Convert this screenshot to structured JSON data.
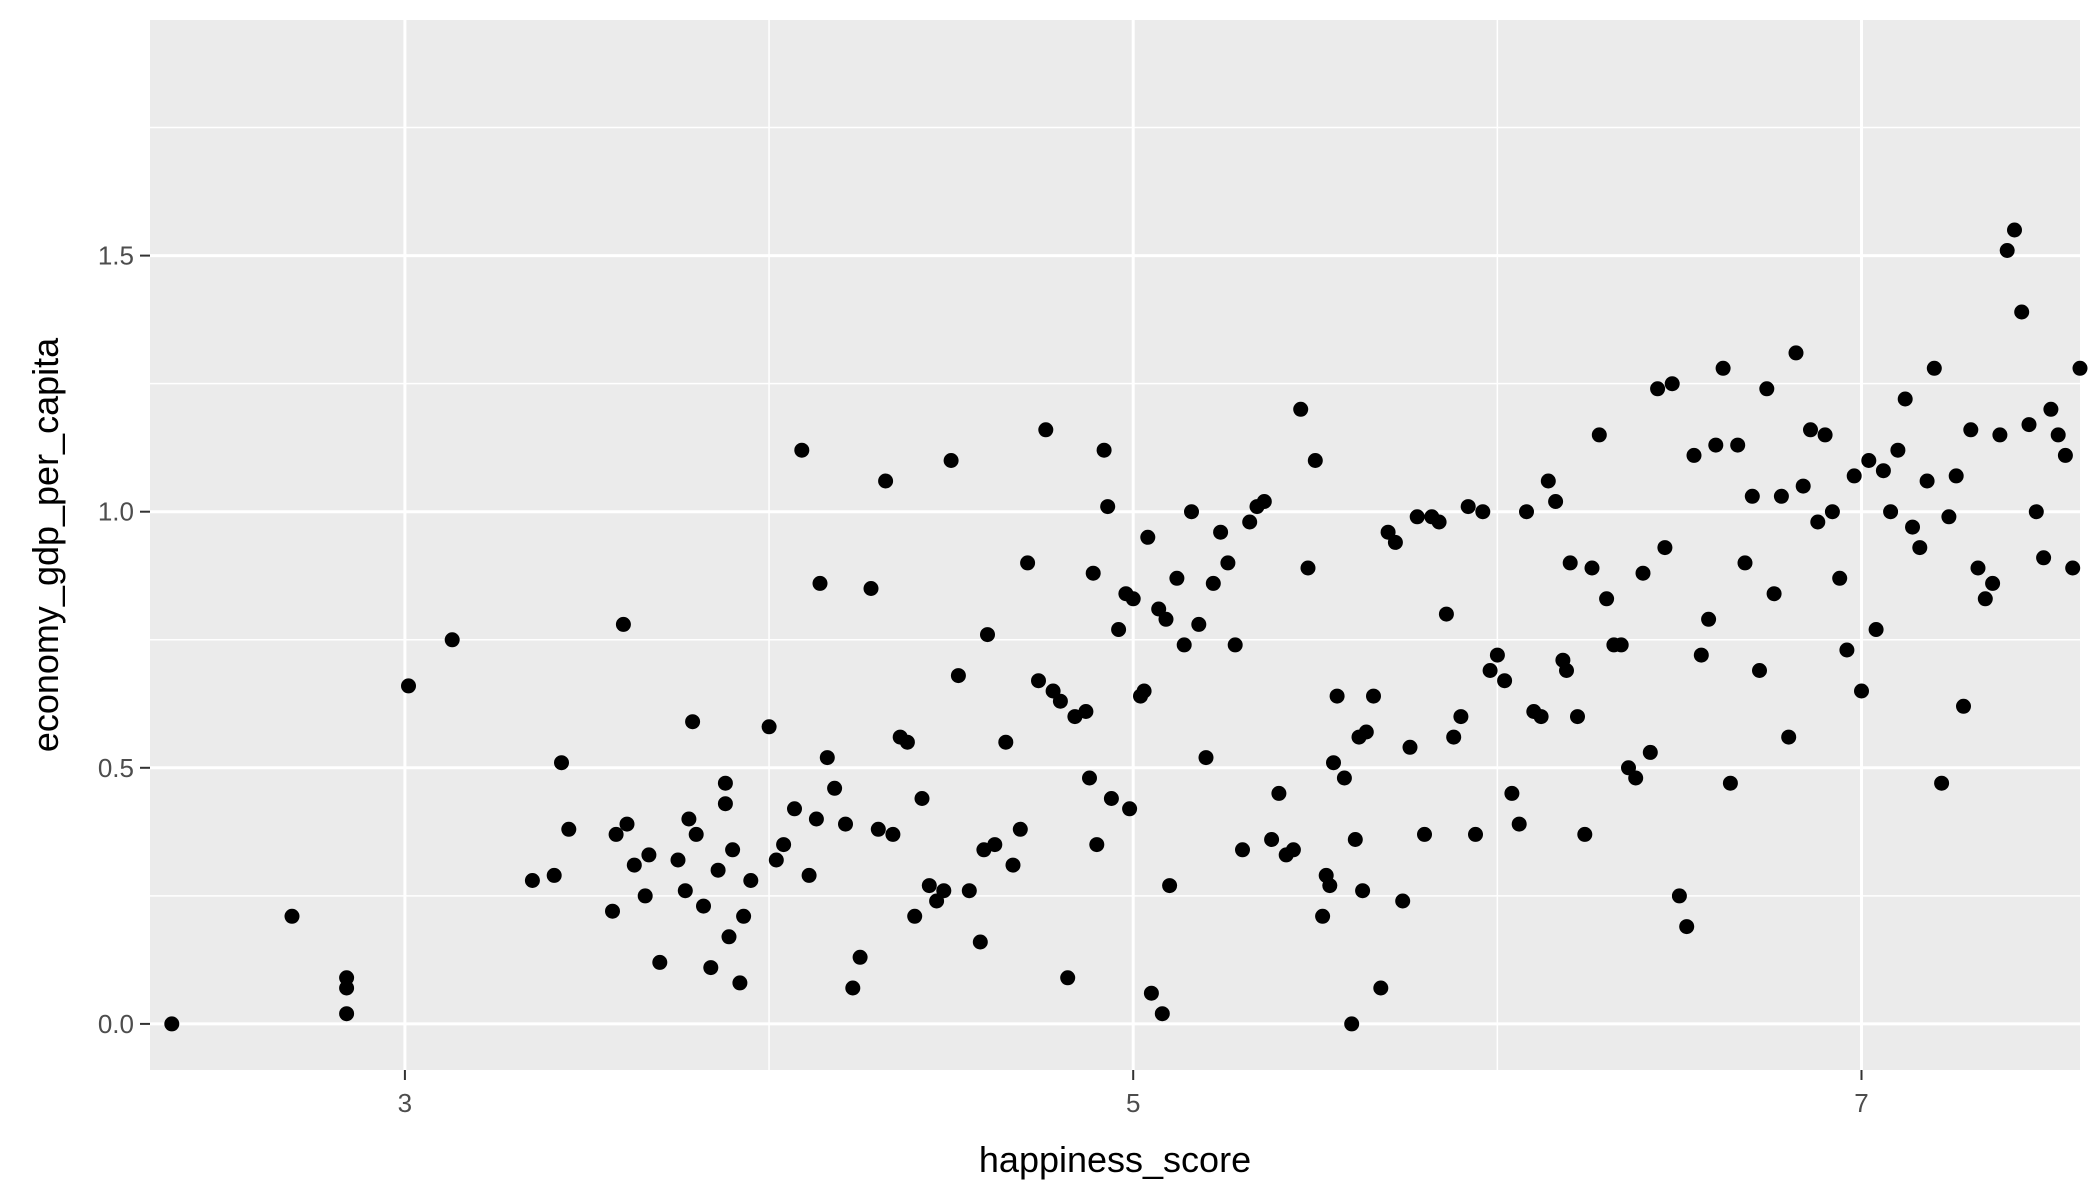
{
  "chart_data": {
    "type": "scatter",
    "title": "",
    "xlabel": "happiness_score",
    "ylabel": "economy_gdp_per_capita",
    "xlim": [
      2.3,
      7.6
    ],
    "ylim": [
      -0.09,
      1.96
    ],
    "x_ticks": [
      3,
      5,
      7
    ],
    "x_tick_labels": [
      "3",
      "5",
      "7"
    ],
    "y_ticks": [
      0.0,
      0.5,
      1.0,
      1.5
    ],
    "y_tick_labels": [
      "0.0",
      "0.5",
      "1.0",
      "1.5"
    ],
    "x_minor_ticks": [
      4,
      6
    ],
    "y_minor_ticks": [
      0.25,
      0.75,
      1.25,
      1.75
    ],
    "grid": true,
    "legend": "none",
    "colors": {
      "panel": "#ebebeb",
      "grid": "#ffffff",
      "point": "#000000"
    },
    "series": [
      {
        "points": [
          [
            2.36,
            0.0
          ],
          [
            2.69,
            0.21
          ],
          [
            2.84,
            0.09
          ],
          [
            2.84,
            0.07
          ],
          [
            2.84,
            0.02
          ],
          [
            3.01,
            0.66
          ],
          [
            3.13,
            0.75
          ],
          [
            3.35,
            0.28
          ],
          [
            3.41,
            0.29
          ],
          [
            3.43,
            0.51
          ],
          [
            3.45,
            0.38
          ],
          [
            3.57,
            0.22
          ],
          [
            3.58,
            0.37
          ],
          [
            3.6,
            0.78
          ],
          [
            3.61,
            0.39
          ],
          [
            3.63,
            0.31
          ],
          [
            3.66,
            0.25
          ],
          [
            3.67,
            0.33
          ],
          [
            3.7,
            0.12
          ],
          [
            3.75,
            0.32
          ],
          [
            3.77,
            0.26
          ],
          [
            3.78,
            0.4
          ],
          [
            3.79,
            0.59
          ],
          [
            3.8,
            0.37
          ],
          [
            3.82,
            0.23
          ],
          [
            3.84,
            0.11
          ],
          [
            3.86,
            0.3
          ],
          [
            3.88,
            0.47
          ],
          [
            3.88,
            0.43
          ],
          [
            3.89,
            0.17
          ],
          [
            3.9,
            0.34
          ],
          [
            3.92,
            0.08
          ],
          [
            3.93,
            0.21
          ],
          [
            3.95,
            0.28
          ],
          [
            4.0,
            0.58
          ],
          [
            4.02,
            0.32
          ],
          [
            4.04,
            0.35
          ],
          [
            4.07,
            0.42
          ],
          [
            4.09,
            1.12
          ],
          [
            4.11,
            0.29
          ],
          [
            4.13,
            0.4
          ],
          [
            4.14,
            0.86
          ],
          [
            4.16,
            0.52
          ],
          [
            4.18,
            0.46
          ],
          [
            4.21,
            0.39
          ],
          [
            4.23,
            0.07
          ],
          [
            4.25,
            0.13
          ],
          [
            4.28,
            0.85
          ],
          [
            4.3,
            0.38
          ],
          [
            4.32,
            1.06
          ],
          [
            4.34,
            0.37
          ],
          [
            4.36,
            0.56
          ],
          [
            4.38,
            0.55
          ],
          [
            4.4,
            0.21
          ],
          [
            4.42,
            0.44
          ],
          [
            4.44,
            0.27
          ],
          [
            4.46,
            0.24
          ],
          [
            4.48,
            0.26
          ],
          [
            4.5,
            1.1
          ],
          [
            4.52,
            0.68
          ],
          [
            4.55,
            0.26
          ],
          [
            4.58,
            0.16
          ],
          [
            4.59,
            0.34
          ],
          [
            4.6,
            0.76
          ],
          [
            4.62,
            0.35
          ],
          [
            4.65,
            0.55
          ],
          [
            4.67,
            0.31
          ],
          [
            4.69,
            0.38
          ],
          [
            4.71,
            0.9
          ],
          [
            4.74,
            0.67
          ],
          [
            4.76,
            1.16
          ],
          [
            4.78,
            0.65
          ],
          [
            4.8,
            0.63
          ],
          [
            4.82,
            0.09
          ],
          [
            4.84,
            0.6
          ],
          [
            4.87,
            0.61
          ],
          [
            4.88,
            0.48
          ],
          [
            4.89,
            0.88
          ],
          [
            4.9,
            0.35
          ],
          [
            4.92,
            1.12
          ],
          [
            4.93,
            1.01
          ],
          [
            4.94,
            0.44
          ],
          [
            4.96,
            0.77
          ],
          [
            4.98,
            0.84
          ],
          [
            4.99,
            0.42
          ],
          [
            5.0,
            0.83
          ],
          [
            5.02,
            0.64
          ],
          [
            5.03,
            0.65
          ],
          [
            5.04,
            0.95
          ],
          [
            5.05,
            0.06
          ],
          [
            5.07,
            0.81
          ],
          [
            5.08,
            0.02
          ],
          [
            5.09,
            0.79
          ],
          [
            5.1,
            0.27
          ],
          [
            5.12,
            0.87
          ],
          [
            5.14,
            0.74
          ],
          [
            5.16,
            1.0
          ],
          [
            5.18,
            0.78
          ],
          [
            5.2,
            0.52
          ],
          [
            5.22,
            0.86
          ],
          [
            5.24,
            0.96
          ],
          [
            5.26,
            0.9
          ],
          [
            5.28,
            0.74
          ],
          [
            5.3,
            0.34
          ],
          [
            5.32,
            0.98
          ],
          [
            5.34,
            1.01
          ],
          [
            5.36,
            1.02
          ],
          [
            5.38,
            0.36
          ],
          [
            5.4,
            0.45
          ],
          [
            5.42,
            0.33
          ],
          [
            5.44,
            0.34
          ],
          [
            5.46,
            1.2
          ],
          [
            5.48,
            0.89
          ],
          [
            5.5,
            1.1
          ],
          [
            5.52,
            0.21
          ],
          [
            5.53,
            0.29
          ],
          [
            5.54,
            0.27
          ],
          [
            5.55,
            0.51
          ],
          [
            5.56,
            0.64
          ],
          [
            5.58,
            0.48
          ],
          [
            5.6,
            0.0
          ],
          [
            5.61,
            0.36
          ],
          [
            5.62,
            0.56
          ],
          [
            5.63,
            0.26
          ],
          [
            5.64,
            0.57
          ],
          [
            5.66,
            0.64
          ],
          [
            5.68,
            0.07
          ],
          [
            5.7,
            0.96
          ],
          [
            5.72,
            0.94
          ],
          [
            5.74,
            0.24
          ],
          [
            5.76,
            0.54
          ],
          [
            5.78,
            0.99
          ],
          [
            5.8,
            0.37
          ],
          [
            5.82,
            0.99
          ],
          [
            5.84,
            0.98
          ],
          [
            5.86,
            0.8
          ],
          [
            5.88,
            0.56
          ],
          [
            5.9,
            0.6
          ],
          [
            5.92,
            1.01
          ],
          [
            5.94,
            0.37
          ],
          [
            5.96,
            1.0
          ],
          [
            5.98,
            0.69
          ],
          [
            6.0,
            0.72
          ],
          [
            6.02,
            0.67
          ],
          [
            6.04,
            0.45
          ],
          [
            6.06,
            0.39
          ],
          [
            6.08,
            1.0
          ],
          [
            6.1,
            0.61
          ],
          [
            6.12,
            0.6
          ],
          [
            6.14,
            1.06
          ],
          [
            6.16,
            1.02
          ],
          [
            6.18,
            0.71
          ],
          [
            6.19,
            0.69
          ],
          [
            6.2,
            0.9
          ],
          [
            6.22,
            0.6
          ],
          [
            6.24,
            0.37
          ],
          [
            6.26,
            0.89
          ],
          [
            6.28,
            1.15
          ],
          [
            6.3,
            0.83
          ],
          [
            6.32,
            0.74
          ],
          [
            6.34,
            0.74
          ],
          [
            6.36,
            0.5
          ],
          [
            6.38,
            0.48
          ],
          [
            6.4,
            0.88
          ],
          [
            6.42,
            0.53
          ],
          [
            6.44,
            1.24
          ],
          [
            6.46,
            0.93
          ],
          [
            6.48,
            1.25
          ],
          [
            6.5,
            0.25
          ],
          [
            6.52,
            0.19
          ],
          [
            6.54,
            1.11
          ],
          [
            6.56,
            0.72
          ],
          [
            6.58,
            0.79
          ],
          [
            6.6,
            1.13
          ],
          [
            6.62,
            1.28
          ],
          [
            6.64,
            0.47
          ],
          [
            6.66,
            1.13
          ],
          [
            6.68,
            0.9
          ],
          [
            6.7,
            1.03
          ],
          [
            6.72,
            0.69
          ],
          [
            6.74,
            1.24
          ],
          [
            6.76,
            0.84
          ],
          [
            6.78,
            1.03
          ],
          [
            6.8,
            0.56
          ],
          [
            6.82,
            1.31
          ],
          [
            6.84,
            1.05
          ],
          [
            6.86,
            1.16
          ],
          [
            6.88,
            0.98
          ],
          [
            6.9,
            1.15
          ],
          [
            6.92,
            1.0
          ],
          [
            6.94,
            0.87
          ],
          [
            6.96,
            0.73
          ],
          [
            6.98,
            1.07
          ],
          [
            7.0,
            0.65
          ],
          [
            7.02,
            1.1
          ],
          [
            7.04,
            0.77
          ],
          [
            7.06,
            1.08
          ],
          [
            7.08,
            1.0
          ],
          [
            7.1,
            1.12
          ],
          [
            7.12,
            1.22
          ],
          [
            7.14,
            0.97
          ],
          [
            7.16,
            0.93
          ],
          [
            7.18,
            1.06
          ],
          [
            7.2,
            1.28
          ],
          [
            7.22,
            0.47
          ],
          [
            7.24,
            0.99
          ],
          [
            7.26,
            1.07
          ],
          [
            7.28,
            0.62
          ],
          [
            7.3,
            1.16
          ],
          [
            7.32,
            0.89
          ],
          [
            7.34,
            0.83
          ],
          [
            7.36,
            0.86
          ],
          [
            7.38,
            1.15
          ],
          [
            7.4,
            1.51
          ],
          [
            7.42,
            1.55
          ],
          [
            7.44,
            1.39
          ],
          [
            7.46,
            1.17
          ],
          [
            7.48,
            1.0
          ],
          [
            7.5,
            0.91
          ],
          [
            7.52,
            1.2
          ],
          [
            7.54,
            1.15
          ],
          [
            7.56,
            1.11
          ],
          [
            7.58,
            0.89
          ],
          [
            7.6,
            1.28
          ]
        ]
      }
    ]
  }
}
